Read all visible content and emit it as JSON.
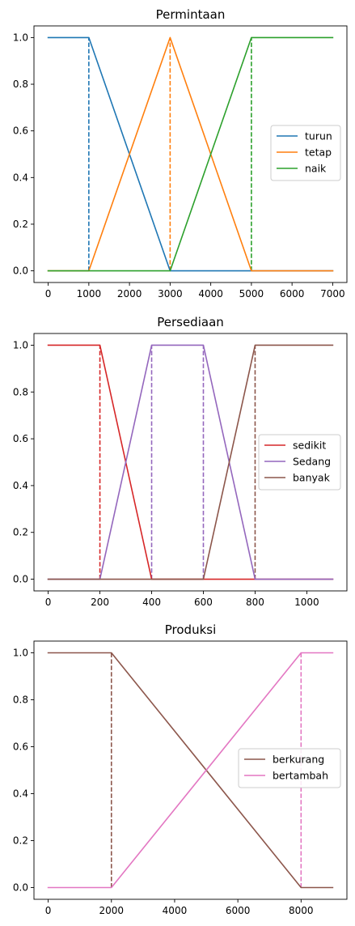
{
  "chart_data": [
    {
      "type": "line",
      "title": "Permintaan",
      "xlabel": "",
      "ylabel": "",
      "xlim": [
        -350,
        7350
      ],
      "ylim": [
        -0.05,
        1.05
      ],
      "xticks": [
        0,
        1000,
        2000,
        3000,
        4000,
        5000,
        6000,
        7000
      ],
      "yticks": [
        0.0,
        0.2,
        0.4,
        0.6,
        0.8,
        1.0
      ],
      "xtick_labels": [
        "0",
        "1000",
        "2000",
        "3000",
        "4000",
        "5000",
        "6000",
        "7000"
      ],
      "ytick_labels": [
        "0.0",
        "0.2",
        "0.4",
        "0.6",
        "0.8",
        "1.0"
      ],
      "grid": false,
      "legend_position": "center-right",
      "series": [
        {
          "name": "turun",
          "color": "#1f77b4",
          "x": [
            0,
            1000,
            3000,
            7000
          ],
          "y": [
            1,
            1,
            0,
            0
          ]
        },
        {
          "name": "tetap",
          "color": "#ff7f0e",
          "x": [
            0,
            1000,
            3000,
            5000,
            7000
          ],
          "y": [
            0,
            0,
            1,
            0,
            0
          ]
        },
        {
          "name": "naik",
          "color": "#2ca02c",
          "x": [
            0,
            3000,
            5000,
            7000
          ],
          "y": [
            0,
            0,
            1,
            1
          ]
        }
      ],
      "dashed_lines": [
        {
          "x": 1000,
          "color": "#1f77b4"
        },
        {
          "x": 3000,
          "color": "#ff7f0e"
        },
        {
          "x": 5000,
          "color": "#2ca02c"
        }
      ]
    },
    {
      "type": "line",
      "title": "Persediaan",
      "xlabel": "",
      "ylabel": "",
      "xlim": [
        -55,
        1155
      ],
      "ylim": [
        -0.05,
        1.05
      ],
      "xticks": [
        0,
        200,
        400,
        600,
        800,
        1000
      ],
      "yticks": [
        0.0,
        0.2,
        0.4,
        0.6,
        0.8,
        1.0
      ],
      "xtick_labels": [
        "0",
        "200",
        "400",
        "600",
        "800",
        "1000"
      ],
      "ytick_labels": [
        "0.0",
        "0.2",
        "0.4",
        "0.6",
        "0.8",
        "1.0"
      ],
      "grid": false,
      "legend_position": "center-right",
      "series": [
        {
          "name": "sedikit",
          "color": "#d62728",
          "x": [
            0,
            200,
            400,
            1100
          ],
          "y": [
            1,
            1,
            0,
            0
          ]
        },
        {
          "name": "Sedang",
          "color": "#9467bd",
          "x": [
            0,
            200,
            400,
            600,
            800,
            1100
          ],
          "y": [
            0,
            0,
            1,
            1,
            0,
            0
          ]
        },
        {
          "name": "banyak",
          "color": "#8c564b",
          "x": [
            0,
            600,
            800,
            1100
          ],
          "y": [
            0,
            0,
            1,
            1
          ]
        }
      ],
      "dashed_lines": [
        {
          "x": 200,
          "color": "#d62728"
        },
        {
          "x": 400,
          "color": "#9467bd"
        },
        {
          "x": 600,
          "color": "#9467bd"
        },
        {
          "x": 800,
          "color": "#8c564b"
        }
      ]
    },
    {
      "type": "line",
      "title": "Produksi",
      "xlabel": "",
      "ylabel": "",
      "xlim": [
        -450,
        9450
      ],
      "ylim": [
        -0.05,
        1.05
      ],
      "xticks": [
        0,
        2000,
        4000,
        6000,
        8000
      ],
      "yticks": [
        0.0,
        0.2,
        0.4,
        0.6,
        0.8,
        1.0
      ],
      "xtick_labels": [
        "0",
        "2000",
        "4000",
        "6000",
        "8000"
      ],
      "ytick_labels": [
        "0.0",
        "0.2",
        "0.4",
        "0.6",
        "0.8",
        "1.0"
      ],
      "grid": false,
      "legend_position": "center-right",
      "series": [
        {
          "name": "berkurang",
          "color": "#8c564b",
          "x": [
            0,
            2000,
            8000,
            9000
          ],
          "y": [
            1,
            1,
            0,
            0
          ]
        },
        {
          "name": "bertambah",
          "color": "#e377c2",
          "x": [
            0,
            2000,
            8000,
            9000
          ],
          "y": [
            0,
            0,
            1,
            1
          ]
        }
      ],
      "dashed_lines": [
        {
          "x": 2000,
          "color": "#8c564b"
        },
        {
          "x": 8000,
          "color": "#e377c2"
        }
      ]
    }
  ]
}
